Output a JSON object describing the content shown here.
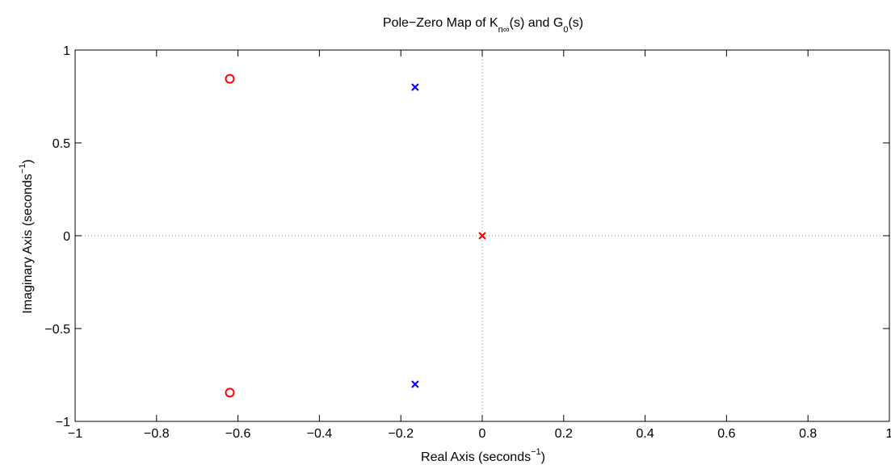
{
  "chart_data": {
    "type": "scatter",
    "title": {
      "prefix": "Pole−Zero Map of K",
      "sub1": "n∞",
      "middle": "(s) and G",
      "sub2": "0",
      "suffix": "(s)"
    },
    "xlabel": {
      "text": "Real Axis (seconds",
      "sup": "−1",
      "close": ")"
    },
    "ylabel": {
      "text": "Imaginary Axis (seconds",
      "sup": "−1",
      "close": ")"
    },
    "xlim": [
      -1,
      1
    ],
    "ylim": [
      -1,
      1
    ],
    "xticks": [
      -1,
      -0.8,
      -0.6,
      -0.4,
      -0.2,
      0,
      0.2,
      0.4,
      0.6,
      0.8,
      1
    ],
    "xtick_labels": [
      "−1",
      "−0.8",
      "−0.6",
      "−0.4",
      "−0.2",
      "0",
      "0.2",
      "0.4",
      "0.6",
      "0.8",
      "1"
    ],
    "yticks": [
      -1,
      -0.5,
      0,
      0.5,
      1
    ],
    "ytick_labels": [
      "−1",
      "−0.5",
      "0",
      "0.5",
      "1"
    ],
    "grid": false,
    "origin_lines": "dotted",
    "series": [
      {
        "marker": "o",
        "color": "#ff0000",
        "points": [
          {
            "x": -0.62,
            "y": 0.845
          },
          {
            "x": -0.62,
            "y": -0.845
          }
        ]
      },
      {
        "marker": "x",
        "color": "#0000ff",
        "points": [
          {
            "x": -0.165,
            "y": 0.8
          },
          {
            "x": -0.165,
            "y": -0.8
          }
        ]
      },
      {
        "marker": "x",
        "color": "#ff0000",
        "points": [
          {
            "x": 0.0,
            "y": 0.0
          }
        ]
      }
    ]
  }
}
